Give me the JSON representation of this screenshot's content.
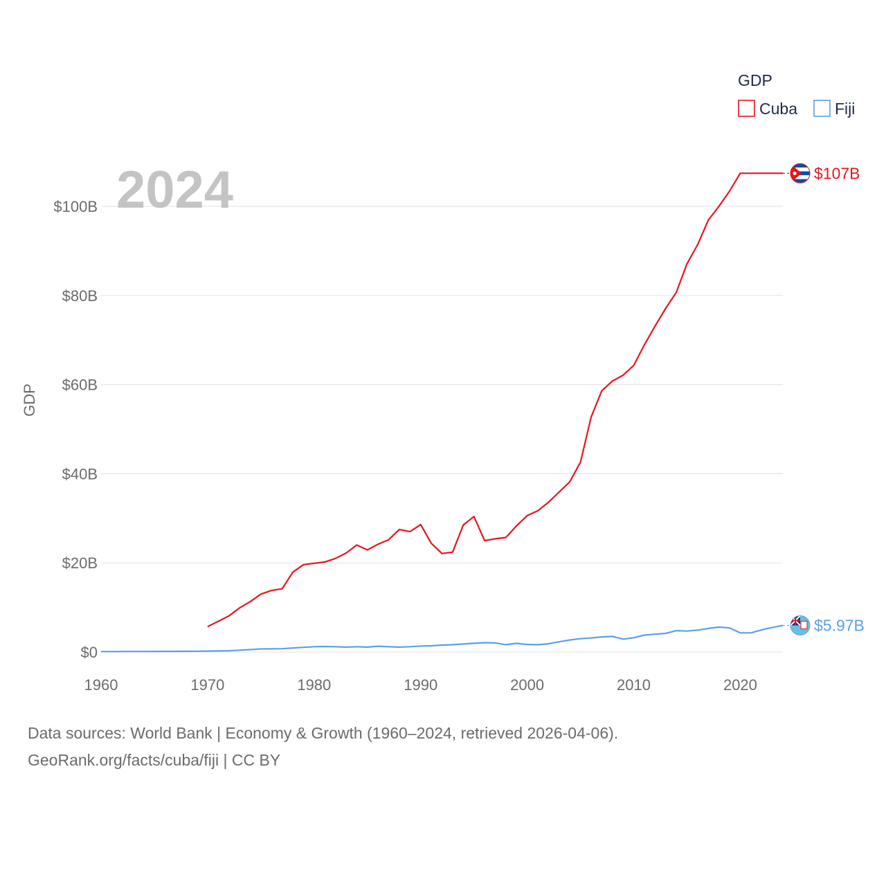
{
  "chart_data": {
    "type": "line",
    "title": "",
    "current_year": "2024",
    "xlabel": "",
    "ylabel": "GDP",
    "xlim": [
      1960,
      2024
    ],
    "ylim": [
      0,
      110
    ],
    "x_ticks": [
      1960,
      1970,
      1980,
      1990,
      2000,
      2010,
      2020
    ],
    "y_ticks": [
      {
        "value": 0,
        "label": "$0"
      },
      {
        "value": 20,
        "label": "$20B"
      },
      {
        "value": 40,
        "label": "$40B"
      },
      {
        "value": 60,
        "label": "$60B"
      },
      {
        "value": 80,
        "label": "$80B"
      },
      {
        "value": 100,
        "label": "$100B"
      }
    ],
    "legend": {
      "title": "GDP",
      "position": "top-right",
      "items": [
        {
          "label": "Cuba",
          "color": "#e8141c"
        },
        {
          "label": "Fiji",
          "color": "#5aa0e8"
        }
      ]
    },
    "grid": true,
    "series": [
      {
        "name": "Cuba",
        "color": "#e8141c",
        "end_label": "$107B",
        "flag_icon": "cuba-flag-icon",
        "points": [
          [
            1970,
            5.7
          ],
          [
            1971,
            6.9
          ],
          [
            1972,
            8.1
          ],
          [
            1973,
            9.9
          ],
          [
            1974,
            11.3
          ],
          [
            1975,
            13.0
          ],
          [
            1976,
            13.8
          ],
          [
            1977,
            14.2
          ],
          [
            1978,
            17.9
          ],
          [
            1979,
            19.6
          ],
          [
            1980,
            19.9
          ],
          [
            1981,
            20.2
          ],
          [
            1982,
            21.0
          ],
          [
            1983,
            22.2
          ],
          [
            1984,
            24.0
          ],
          [
            1985,
            22.9
          ],
          [
            1986,
            24.2
          ],
          [
            1987,
            25.2
          ],
          [
            1988,
            27.5
          ],
          [
            1989,
            27.0
          ],
          [
            1990,
            28.6
          ],
          [
            1991,
            24.4
          ],
          [
            1992,
            22.1
          ],
          [
            1993,
            22.4
          ],
          [
            1994,
            28.5
          ],
          [
            1995,
            30.4
          ],
          [
            1996,
            25.0
          ],
          [
            1997,
            25.4
          ],
          [
            1998,
            25.7
          ],
          [
            1999,
            28.3
          ],
          [
            2000,
            30.6
          ],
          [
            2001,
            31.7
          ],
          [
            2002,
            33.6
          ],
          [
            2003,
            35.9
          ],
          [
            2004,
            38.2
          ],
          [
            2005,
            42.6
          ],
          [
            2006,
            52.7
          ],
          [
            2007,
            58.6
          ],
          [
            2008,
            60.8
          ],
          [
            2009,
            62.1
          ],
          [
            2010,
            64.3
          ],
          [
            2011,
            68.9
          ],
          [
            2012,
            73.1
          ],
          [
            2013,
            77.1
          ],
          [
            2014,
            80.7
          ],
          [
            2015,
            87.1
          ],
          [
            2016,
            91.4
          ],
          [
            2017,
            96.9
          ],
          [
            2018,
            100.0
          ],
          [
            2019,
            103.4
          ],
          [
            2020,
            107.4
          ],
          [
            2021,
            107.4
          ],
          [
            2022,
            107.4
          ],
          [
            2023,
            107.4
          ],
          [
            2024,
            107.4
          ]
        ]
      },
      {
        "name": "Fiji",
        "color": "#5aa0e8",
        "end_label": "$5.97B",
        "flag_icon": "fiji-flag-icon",
        "points": [
          [
            1960,
            0.11
          ],
          [
            1961,
            0.11
          ],
          [
            1962,
            0.12
          ],
          [
            1963,
            0.12
          ],
          [
            1964,
            0.13
          ],
          [
            1965,
            0.14
          ],
          [
            1966,
            0.15
          ],
          [
            1967,
            0.16
          ],
          [
            1968,
            0.17
          ],
          [
            1969,
            0.19
          ],
          [
            1970,
            0.22
          ],
          [
            1971,
            0.25
          ],
          [
            1972,
            0.3
          ],
          [
            1973,
            0.42
          ],
          [
            1974,
            0.55
          ],
          [
            1975,
            0.7
          ],
          [
            1976,
            0.72
          ],
          [
            1977,
            0.75
          ],
          [
            1978,
            0.9
          ],
          [
            1979,
            1.05
          ],
          [
            1980,
            1.2
          ],
          [
            1981,
            1.25
          ],
          [
            1982,
            1.2
          ],
          [
            1983,
            1.1
          ],
          [
            1984,
            1.2
          ],
          [
            1985,
            1.1
          ],
          [
            1986,
            1.3
          ],
          [
            1987,
            1.2
          ],
          [
            1988,
            1.1
          ],
          [
            1989,
            1.2
          ],
          [
            1990,
            1.35
          ],
          [
            1991,
            1.4
          ],
          [
            1992,
            1.55
          ],
          [
            1993,
            1.65
          ],
          [
            1994,
            1.8
          ],
          [
            1995,
            1.95
          ],
          [
            1996,
            2.1
          ],
          [
            1997,
            2.05
          ],
          [
            1998,
            1.65
          ],
          [
            1999,
            1.95
          ],
          [
            2000,
            1.7
          ],
          [
            2001,
            1.65
          ],
          [
            2002,
            1.85
          ],
          [
            2003,
            2.3
          ],
          [
            2004,
            2.7
          ],
          [
            2005,
            3.0
          ],
          [
            2006,
            3.15
          ],
          [
            2007,
            3.4
          ],
          [
            2008,
            3.5
          ],
          [
            2009,
            2.9
          ],
          [
            2010,
            3.2
          ],
          [
            2011,
            3.8
          ],
          [
            2012,
            4.0
          ],
          [
            2013,
            4.2
          ],
          [
            2014,
            4.8
          ],
          [
            2015,
            4.7
          ],
          [
            2016,
            4.9
          ],
          [
            2017,
            5.3
          ],
          [
            2018,
            5.6
          ],
          [
            2019,
            5.4
          ],
          [
            2020,
            4.3
          ],
          [
            2021,
            4.3
          ],
          [
            2022,
            4.95
          ],
          [
            2023,
            5.5
          ],
          [
            2024,
            5.97
          ]
        ]
      }
    ]
  },
  "footer": {
    "sources": "Data sources: World Bank | Economy & Growth (1960–2024, retrieved 2026-04-06).",
    "credit": "GeoRank.org/facts/cuba/fiji | CC BY"
  }
}
